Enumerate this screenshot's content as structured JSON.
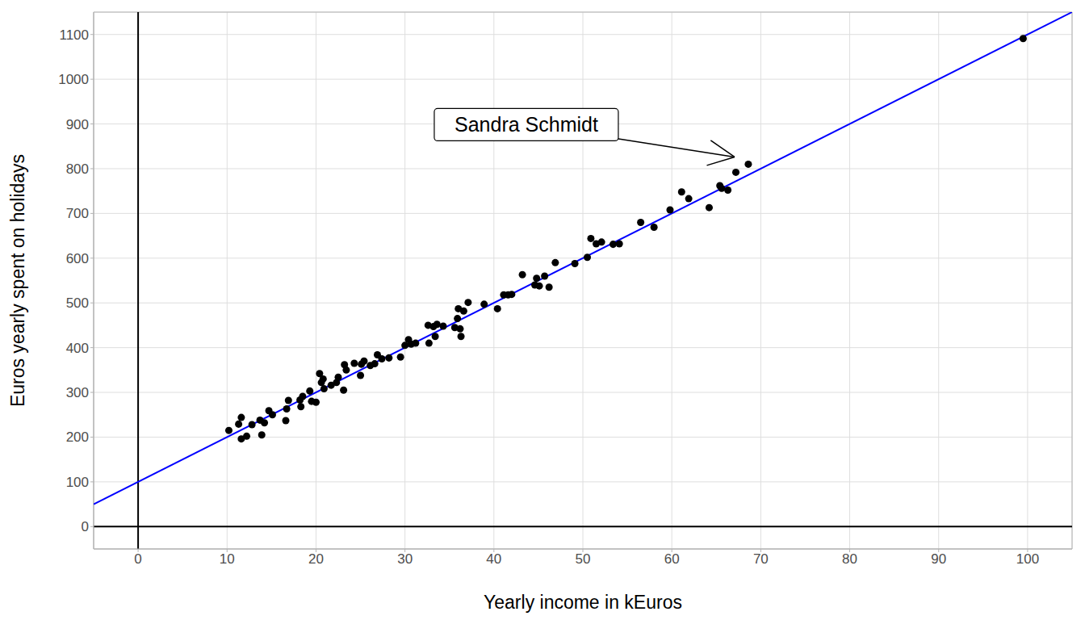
{
  "chart_data": {
    "type": "scatter",
    "x_label": "Yearly income in kEuros",
    "y_label": "Euros yearly spent on holidays",
    "x": [
      10.2,
      11.3,
      11.6,
      11.6,
      12.2,
      12.8,
      13.7,
      13.9,
      14.2,
      14.7,
      15.1,
      16.6,
      16.7,
      16.9,
      18.2,
      18.3,
      18.5,
      19.3,
      19.5,
      20.0,
      20.4,
      20.6,
      20.8,
      20.9,
      21.7,
      22.3,
      22.5,
      23.1,
      23.2,
      23.4,
      24.3,
      25.0,
      25.1,
      25.4,
      26.1,
      26.6,
      26.9,
      27.4,
      28.2,
      29.5,
      30.0,
      30.4,
      30.7,
      31.2,
      32.6,
      32.7,
      33.2,
      33.4,
      33.6,
      34.3,
      35.6,
      35.9,
      36.0,
      36.2,
      36.3,
      36.6,
      37.1,
      38.9,
      40.4,
      41.1,
      41.6,
      42.0,
      43.2,
      44.6,
      44.8,
      45.1,
      45.7,
      46.2,
      46.9,
      49.1,
      50.5,
      50.9,
      51.5,
      52.1,
      53.4,
      54.1,
      56.5,
      58.0,
      59.8,
      61.1,
      61.9,
      64.2,
      65.4,
      65.6,
      66.3,
      67.2,
      68.6,
      99.5
    ],
    "values": [
      215,
      229,
      244,
      196,
      202,
      228,
      238,
      205,
      232,
      259,
      250,
      237,
      263,
      282,
      283,
      268,
      291,
      303,
      280,
      278,
      342,
      322,
      330,
      308,
      316,
      322,
      334,
      305,
      362,
      350,
      365,
      338,
      363,
      370,
      360,
      364,
      384,
      375,
      377,
      379,
      405,
      418,
      408,
      410,
      450,
      410,
      447,
      425,
      452,
      448,
      445,
      465,
      487,
      442,
      425,
      482,
      501,
      497,
      487,
      518,
      518,
      519,
      563,
      540,
      555,
      538,
      560,
      535,
      590,
      588,
      602,
      644,
      632,
      636,
      631,
      632,
      680,
      669,
      708,
      748,
      733,
      713,
      762,
      756,
      752,
      792,
      810,
      1091
    ],
    "color": "#000000",
    "marker": "circle",
    "trend_line": {
      "type": "line",
      "color": "#0000ff",
      "x": [
        -5,
        105
      ],
      "values": [
        50,
        1150
      ]
    },
    "annotations": [
      {
        "text": "Sandra Schmidt",
        "x": 68.6,
        "y": 810
      }
    ],
    "xlim": [
      -5,
      105
    ],
    "ylim": [
      -50,
      1150
    ],
    "xticks": [
      0,
      10,
      20,
      30,
      40,
      50,
      60,
      70,
      80,
      90,
      100
    ],
    "yticks": [
      0,
      100,
      200,
      300,
      400,
      500,
      600,
      700,
      800,
      900,
      1000,
      1100
    ],
    "grid": true
  }
}
